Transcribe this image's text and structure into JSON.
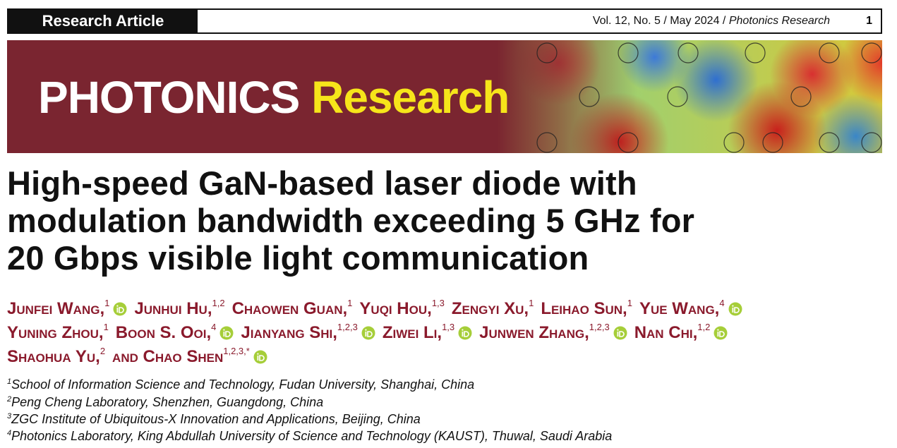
{
  "header": {
    "article_type": "Research Article",
    "issue": "Vol. 12, No. 5 / May 2024 / ",
    "journal": "Photonics Research",
    "page": "1"
  },
  "banner": {
    "word1": "PHOTONICS",
    "word2": "Research"
  },
  "title": [
    "High-speed GaN-based laser diode with",
    "modulation bandwidth exceeding 5 GHz for",
    "20 Gbps visible light communication"
  ],
  "authors": [
    [
      {
        "name": "Junfei Wang,",
        "affil": "1",
        "orcid": true
      },
      {
        "name": "Junhui Hu,",
        "affil": "1,2",
        "orcid": false
      },
      {
        "name": "Chaowen Guan,",
        "affil": "1",
        "orcid": false
      },
      {
        "name": "Yuqi Hou,",
        "affil": "1,3",
        "orcid": false
      },
      {
        "name": "Zengyi Xu,",
        "affil": "1",
        "orcid": false
      },
      {
        "name": "Leihao Sun,",
        "affil": "1",
        "orcid": false
      },
      {
        "name": "Yue Wang,",
        "affil": "4",
        "orcid": true
      }
    ],
    [
      {
        "name": "Yuning Zhou,",
        "affil": "1",
        "orcid": false
      },
      {
        "name": "Boon S. Ooi,",
        "affil": "4",
        "orcid": true
      },
      {
        "name": "Jianyang Shi,",
        "affil": "1,2,3",
        "orcid": true
      },
      {
        "name": "Ziwei Li,",
        "affil": "1,3",
        "orcid": true
      },
      {
        "name": "Junwen Zhang,",
        "affil": "1,2,3",
        "orcid": true
      },
      {
        "name": "Nan Chi,",
        "affil": "1,2",
        "orcid": true
      }
    ],
    [
      {
        "name": "Shaohua Yu,",
        "affil": "2",
        "orcid": false
      },
      {
        "name": "and Chao Shen",
        "affil": "1,2,3,*",
        "orcid": true
      }
    ]
  ],
  "affiliations": [
    {
      "number": "1",
      "text": "School of Information Science and Technology, Fudan University, Shanghai, China"
    },
    {
      "number": "2",
      "text": "Peng Cheng Laboratory, Shenzhen, Guangdong, China"
    },
    {
      "number": "3",
      "text": "ZGC Institute of Ubiquitous-X Innovation and Applications, Beijing, China"
    },
    {
      "number": "4",
      "text": "Photonics Laboratory, King Abdullah University of Science and Technology (KAUST), Thuwal, Saudi Arabia"
    }
  ]
}
